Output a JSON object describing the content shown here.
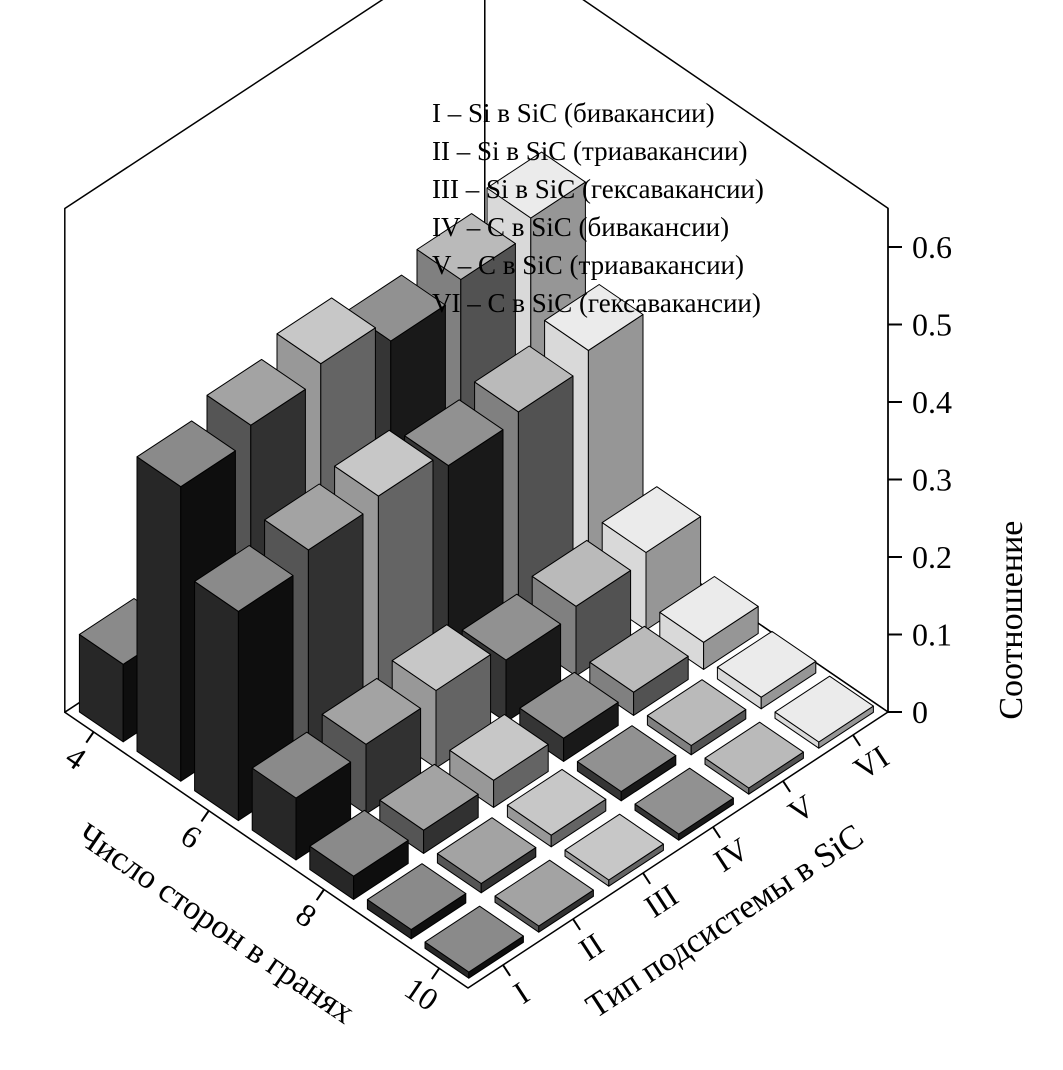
{
  "figure": {
    "background": "#ffffff",
    "ink_color": "#000000"
  },
  "chart_data": {
    "type": "bar",
    "subtype": "3d-bar-grid",
    "title": "",
    "x_axis": {
      "label": "Тип подсистемы в SiC",
      "categories": [
        "I",
        "II",
        "III",
        "IV",
        "V",
        "VI"
      ]
    },
    "y_axis": {
      "label": "Число сторон в гранях",
      "ticks": [
        4,
        6,
        8,
        10
      ],
      "values": [
        4,
        5,
        6,
        7,
        8,
        9,
        10
      ]
    },
    "z_axis": {
      "label": "Соотношение",
      "ticks": [
        0,
        0.1,
        0.2,
        0.3,
        0.4,
        0.5,
        0.6
      ],
      "min": 0,
      "max": 0.65
    },
    "legend": [
      "I – Si в SiC (бивакансии)",
      "II – Si в SiC (триавакансии)",
      "III – Si в SiC (гексавакансии)",
      "IV – C в SiC (бивакансии)",
      "V – C в SiC (триавакансии)",
      "VI – C в SiC (гексавакансии)"
    ],
    "grid": false,
    "legend_position": "top-center-inside",
    "series": [
      {
        "name": "I",
        "color": "#141414",
        "values": [
          0.1,
          0.38,
          0.27,
          0.08,
          0.03,
          0.012,
          0.008
        ]
      },
      {
        "name": "II",
        "color": "#464646",
        "values": [
          0.14,
          0.4,
          0.29,
          0.09,
          0.03,
          0.012,
          0.008
        ]
      },
      {
        "name": "III",
        "color": "#8f8f8f",
        "values": [
          0.17,
          0.42,
          0.3,
          0.1,
          0.035,
          0.015,
          0.008
        ]
      },
      {
        "name": "IV",
        "color": "#232323",
        "values": [
          0.12,
          0.39,
          0.28,
          0.08,
          0.03,
          0.012,
          0.008
        ]
      },
      {
        "name": "V",
        "color": "#757575",
        "values": [
          0.15,
          0.41,
          0.29,
          0.09,
          0.03,
          0.012,
          0.008
        ]
      },
      {
        "name": "VI",
        "color": "#d6d6d6",
        "values": [
          0.19,
          0.43,
          0.31,
          0.1,
          0.035,
          0.015,
          0.008
        ]
      }
    ]
  }
}
